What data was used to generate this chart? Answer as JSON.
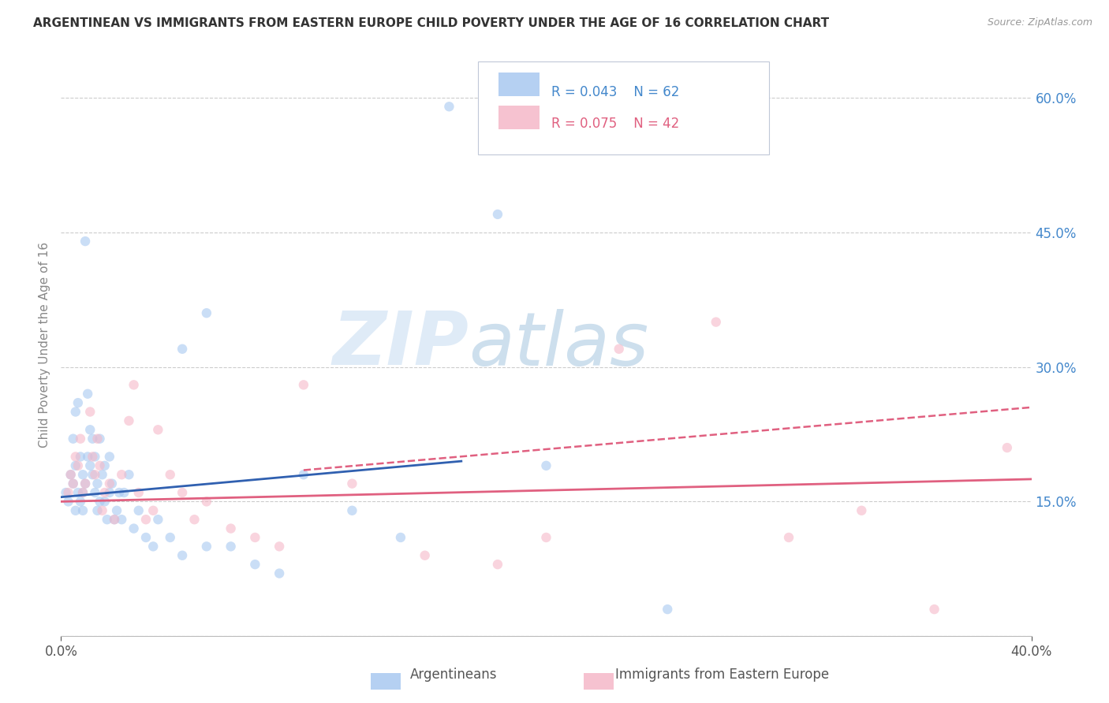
{
  "title": "ARGENTINEAN VS IMMIGRANTS FROM EASTERN EUROPE CHILD POVERTY UNDER THE AGE OF 16 CORRELATION CHART",
  "source": "Source: ZipAtlas.com",
  "ylabel": "Child Poverty Under the Age of 16",
  "xlim": [
    0.0,
    0.4
  ],
  "ylim": [
    0.0,
    0.65
  ],
  "yticks": [
    0.0,
    0.15,
    0.3,
    0.45,
    0.6
  ],
  "xticks": [
    0.0,
    0.4
  ],
  "right_ytick_labels": [
    "",
    "15.0%",
    "30.0%",
    "45.0%",
    "60.0%"
  ],
  "xtick_labels": [
    "0.0%",
    "40.0%"
  ],
  "legend_r1": "R = 0.043",
  "legend_n1": "N = 62",
  "legend_r2": "R = 0.075",
  "legend_n2": "N = 42",
  "color_blue": "#a8c8f0",
  "color_pink": "#f5b8c8",
  "color_line_blue": "#3060b0",
  "color_line_pink": "#e06080",
  "color_title": "#333333",
  "color_source": "#999999",
  "color_axis_label": "#888888",
  "color_right_axis": "#4488cc",
  "background": "#ffffff",
  "grid_color": "#cccccc",
  "watermark_zip": "ZIP",
  "watermark_atlas": "atlas",
  "argentinean_x": [
    0.002,
    0.003,
    0.004,
    0.005,
    0.005,
    0.006,
    0.006,
    0.006,
    0.007,
    0.007,
    0.008,
    0.008,
    0.009,
    0.009,
    0.009,
    0.01,
    0.01,
    0.011,
    0.011,
    0.012,
    0.012,
    0.013,
    0.013,
    0.014,
    0.014,
    0.015,
    0.015,
    0.016,
    0.016,
    0.017,
    0.018,
    0.018,
    0.019,
    0.02,
    0.02,
    0.021,
    0.022,
    0.023,
    0.024,
    0.025,
    0.026,
    0.028,
    0.03,
    0.032,
    0.035,
    0.038,
    0.04,
    0.045,
    0.05,
    0.06,
    0.07,
    0.08,
    0.09,
    0.1,
    0.12,
    0.14,
    0.16,
    0.18,
    0.2,
    0.05,
    0.06,
    0.25
  ],
  "argentinean_y": [
    0.16,
    0.15,
    0.18,
    0.17,
    0.22,
    0.14,
    0.19,
    0.25,
    0.16,
    0.26,
    0.15,
    0.2,
    0.14,
    0.18,
    0.16,
    0.17,
    0.44,
    0.27,
    0.2,
    0.19,
    0.23,
    0.18,
    0.22,
    0.16,
    0.2,
    0.14,
    0.17,
    0.15,
    0.22,
    0.18,
    0.15,
    0.19,
    0.13,
    0.16,
    0.2,
    0.17,
    0.13,
    0.14,
    0.16,
    0.13,
    0.16,
    0.18,
    0.12,
    0.14,
    0.11,
    0.1,
    0.13,
    0.11,
    0.09,
    0.1,
    0.1,
    0.08,
    0.07,
    0.18,
    0.14,
    0.11,
    0.59,
    0.47,
    0.19,
    0.32,
    0.36,
    0.03
  ],
  "eastern_x": [
    0.003,
    0.004,
    0.005,
    0.006,
    0.007,
    0.008,
    0.009,
    0.01,
    0.012,
    0.013,
    0.014,
    0.015,
    0.016,
    0.017,
    0.018,
    0.02,
    0.022,
    0.025,
    0.028,
    0.03,
    0.032,
    0.035,
    0.038,
    0.04,
    0.045,
    0.05,
    0.055,
    0.06,
    0.07,
    0.08,
    0.09,
    0.1,
    0.12,
    0.15,
    0.18,
    0.2,
    0.23,
    0.27,
    0.3,
    0.33,
    0.36,
    0.39
  ],
  "eastern_y": [
    0.16,
    0.18,
    0.17,
    0.2,
    0.19,
    0.22,
    0.16,
    0.17,
    0.25,
    0.2,
    0.18,
    0.22,
    0.19,
    0.14,
    0.16,
    0.17,
    0.13,
    0.18,
    0.24,
    0.28,
    0.16,
    0.13,
    0.14,
    0.23,
    0.18,
    0.16,
    0.13,
    0.15,
    0.12,
    0.11,
    0.1,
    0.28,
    0.17,
    0.09,
    0.08,
    0.11,
    0.32,
    0.35,
    0.11,
    0.14,
    0.03,
    0.21
  ],
  "dot_size": 80,
  "dot_alpha": 0.6,
  "line_blue_x0": 0.0,
  "line_blue_x1": 0.165,
  "line_blue_y0": 0.155,
  "line_blue_y1": 0.195,
  "line_pink_solid_x0": 0.0,
  "line_pink_solid_x1": 0.4,
  "line_pink_solid_y0": 0.15,
  "line_pink_solid_y1": 0.175,
  "line_pink_dash_x0": 0.1,
  "line_pink_dash_x1": 0.4,
  "line_pink_dash_y0": 0.185,
  "line_pink_dash_y1": 0.255
}
